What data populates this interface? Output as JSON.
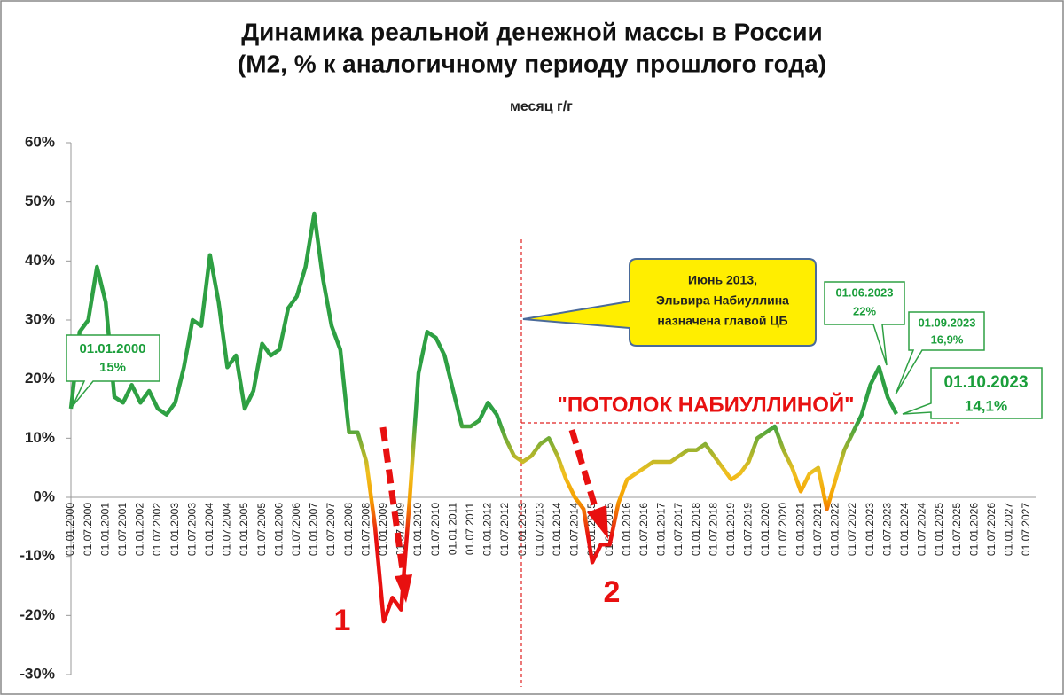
{
  "chart_data": {
    "type": "line",
    "title": "Динамика реальной денежной массы в России",
    "subtitle": "(М2, % к аналогичному периоду прошлого года)",
    "categories": [
      "01.01.2000",
      null,
      "01.07.2000",
      null,
      "01.01.2001",
      null,
      "01.07.2001",
      null,
      "01.01.2002",
      null,
      "01.07.2002",
      null,
      "01.01.2003",
      null,
      "01.07.2003",
      null,
      "01.01.2004",
      null,
      "01.07.2004",
      null,
      "01.01.2005",
      null,
      "01.07.2005",
      null,
      "01.01.2006",
      null,
      "01.07.2006",
      null,
      "01.01.2007",
      null,
      "01.07.2007",
      null,
      "01.01.2008",
      null,
      "01.07.2008",
      null,
      "01.01.2009",
      null,
      "01.07.2009",
      null,
      "01.01.2010",
      null,
      "01.07.2010",
      null,
      "01.01.2011",
      null,
      "01.07.2011",
      null,
      "01.01.2012",
      null,
      "01.07.2012",
      null,
      "01.01.2013",
      null,
      "01.07.2013",
      null,
      "01.01.2014",
      null,
      "01.07.2014",
      null,
      "01.01.2015",
      null,
      "01.07.2015",
      null,
      "01.01.2016",
      null,
      "01.07.2016",
      null,
      "01.01.2017",
      null,
      "01.07.2017",
      null,
      "01.01.2018",
      null,
      "01.07.2018",
      null,
      "01.01.2019",
      null,
      "01.07.2019",
      null,
      "01.01.2020",
      null,
      "01.07.2020",
      null,
      "01.01.2021",
      null,
      "01.07.2021",
      null,
      "01.01.2022",
      null,
      "01.07.2022",
      null,
      "01.01.2023",
      null,
      "01.07.2023",
      null,
      "01.01.2024",
      null,
      "01.07.2024",
      null,
      "01.01.2025",
      null,
      "01.07.2025",
      null,
      "01.01.2026",
      null,
      "01.07.2026",
      null,
      "01.01.2027",
      null,
      "01.07.2027"
    ],
    "series": [
      {
        "name": "месяц г/г",
        "color": "#2ea043",
        "values": [
          15,
          28,
          30,
          39,
          33,
          17,
          16,
          19,
          16,
          18,
          15,
          14,
          16,
          22,
          30,
          29,
          41,
          33,
          22,
          24,
          15,
          18,
          26,
          24,
          25,
          32,
          34,
          39,
          48,
          37,
          29,
          25,
          11,
          11,
          6,
          -5,
          -21,
          -17,
          -19,
          0,
          21,
          28,
          27,
          24,
          18,
          12,
          12,
          13,
          16,
          14,
          10,
          7,
          6,
          7,
          9,
          10,
          7,
          3,
          0,
          -2,
          -11,
          -8,
          -8,
          -1,
          3,
          4,
          5,
          6,
          6,
          6,
          7,
          8,
          8,
          9,
          7,
          5,
          3,
          4,
          6,
          10,
          11,
          12,
          8,
          5,
          1,
          4,
          5,
          -2,
          3,
          8,
          11,
          14,
          19,
          22,
          16.9,
          14.1,
          null,
          null,
          null,
          null,
          null,
          null,
          null,
          null,
          null,
          null,
          null,
          null,
          null,
          null,
          null
        ]
      }
    ],
    "ylim": [
      -30,
      60
    ],
    "yticks": [
      {
        "value": -30,
        "label": "-30%"
      },
      {
        "value": -20,
        "label": "-20%"
      },
      {
        "value": -10,
        "label": "-10%"
      },
      {
        "value": 0,
        "label": "0%"
      },
      {
        "value": 10,
        "label": "10%"
      },
      {
        "value": 20,
        "label": "20%"
      },
      {
        "value": 30,
        "label": "30%"
      },
      {
        "value": 40,
        "label": "40%"
      },
      {
        "value": 50,
        "label": "50%"
      },
      {
        "value": 60,
        "label": "60%"
      }
    ],
    "grid": false,
    "legend": "top",
    "annotations": {
      "start_date": "01.01.2000",
      "start_value": "15%",
      "cb_lines": [
        "Июнь 2013,",
        "Эльвира  Набиуллина",
        "назначена главой ЦБ"
      ],
      "june_date": "01.06.2023",
      "june_value": "22%",
      "sep_date": "01.09.2023",
      "sep_value": "16,9%",
      "oct_date": "01.10.2023",
      "oct_value": "14,1%",
      "ceiling": "\"ПОТОЛОК НАБИУЛЛИНОЙ\"",
      "crisis1": "1",
      "crisis2": "2"
    }
  }
}
